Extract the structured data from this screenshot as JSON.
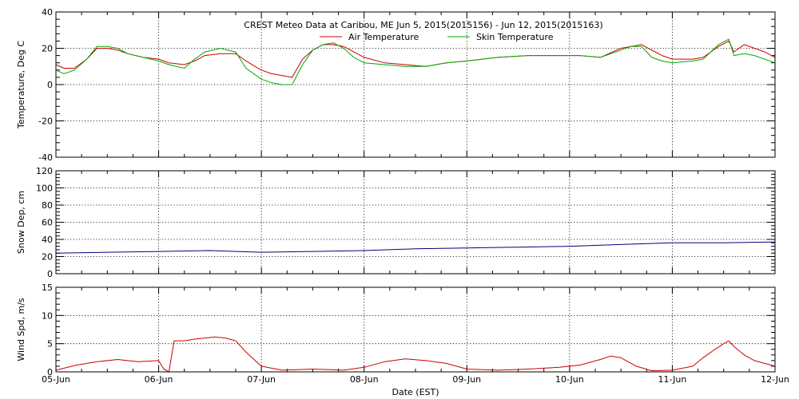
{
  "chart_data": {
    "type": "line",
    "title": "CREST Meteo Data at Caribou, ME   Jun  5, 2015(2015156) - Jun 12, 2015(2015163)",
    "xlabel": "Date (EST)",
    "x_categories": [
      "05-Jun",
      "06-Jun",
      "07-Jun",
      "08-Jun",
      "09-Jun",
      "10-Jun",
      "11-Jun",
      "12-Jun"
    ],
    "xlim_days": [
      0,
      7
    ],
    "grid": true,
    "legend_position": "top-center",
    "panels": [
      {
        "ylabel": "Temperature, Deg C",
        "ylim": [
          -40,
          40
        ],
        "yticks": [
          -40,
          -20,
          0,
          20,
          40
        ],
        "series": [
          {
            "name": "Air Temperature",
            "color": "#cc0000",
            "x": [
              0,
              0.08,
              0.18,
              0.3,
              0.4,
              0.5,
              0.6,
              0.7,
              0.85,
              1.0,
              1.1,
              1.25,
              1.35,
              1.45,
              1.6,
              1.75,
              1.85,
              2.0,
              2.1,
              2.2,
              2.3,
              2.4,
              2.5,
              2.6,
              2.7,
              2.8,
              2.9,
              3.0,
              3.2,
              3.4,
              3.6,
              3.8,
              4.0,
              4.3,
              4.6,
              4.9,
              5.1,
              5.3,
              5.5,
              5.6,
              5.7,
              5.8,
              5.9,
              6.0,
              6.2,
              6.3,
              6.45,
              6.55,
              6.6,
              6.7,
              6.8,
              6.9,
              7.0
            ],
            "y": [
              11,
              9,
              9,
              14,
              20,
              20,
              19,
              17,
              15,
              14,
              12,
              11,
              13,
              16,
              17,
              17,
              13,
              8,
              6,
              5,
              4,
              14,
              19,
              22,
              22,
              21,
              18,
              15,
              12,
              11,
              10,
              12,
              13,
              15,
              16,
              16,
              16,
              15,
              20,
              21,
              22,
              19,
              16,
              14,
              14,
              15,
              21,
              24,
              18,
              22,
              20,
              18,
              15
            ]
          },
          {
            "name": "Skin Temperature",
            "color": "#00aa00",
            "x": [
              0,
              0.08,
              0.18,
              0.3,
              0.4,
              0.5,
              0.6,
              0.7,
              0.85,
              1.0,
              1.1,
              1.25,
              1.35,
              1.45,
              1.6,
              1.75,
              1.85,
              2.0,
              2.1,
              2.2,
              2.3,
              2.4,
              2.5,
              2.6,
              2.7,
              2.8,
              2.9,
              3.0,
              3.2,
              3.4,
              3.6,
              3.8,
              4.0,
              4.3,
              4.6,
              4.9,
              5.1,
              5.3,
              5.5,
              5.6,
              5.7,
              5.8,
              5.9,
              6.0,
              6.2,
              6.3,
              6.45,
              6.55,
              6.6,
              6.7,
              6.8,
              6.9,
              7.0
            ],
            "y": [
              8,
              6,
              8,
              14,
              21,
              21,
              20,
              17,
              15,
              13,
              11,
              9,
              14,
              18,
              20,
              18,
              9,
              3,
              1,
              0,
              0,
              11,
              19,
              22,
              23,
              20,
              15,
              12,
              11,
              10,
              10,
              12,
              13,
              15,
              16,
              16,
              16,
              15,
              19,
              21,
              21,
              15,
              13,
              12,
              13,
              14,
              22,
              25,
              16,
              17,
              16,
              14,
              12
            ]
          }
        ]
      },
      {
        "ylabel": "Snow Dep, cm",
        "ylim": [
          0,
          120
        ],
        "yticks": [
          0,
          20,
          40,
          60,
          80,
          100,
          120
        ],
        "series": [
          {
            "color": "#000080",
            "x": [
              0,
              0.5,
              1.0,
              1.5,
              2.0,
              2.5,
              3.0,
              3.5,
              4.0,
              4.5,
              5.0,
              5.5,
              6.0,
              6.5,
              7.0
            ],
            "y": [
              24,
              25,
              26,
              27,
              25,
              26,
              27,
              29,
              30,
              31,
              32,
              34,
              36,
              36,
              37
            ]
          }
        ]
      },
      {
        "ylabel": "Wind Spd, m/s",
        "ylim": [
          0,
          15
        ],
        "yticks": [
          0,
          5,
          10,
          15
        ],
        "series": [
          {
            "color": "#cc0000",
            "x": [
              0,
              0.2,
              0.4,
              0.6,
              0.8,
              1.0,
              1.05,
              1.1,
              1.15,
              1.25,
              1.35,
              1.45,
              1.55,
              1.65,
              1.75,
              1.85,
              2.0,
              2.2,
              2.5,
              2.8,
              3.0,
              3.2,
              3.4,
              3.6,
              3.8,
              4.0,
              4.3,
              4.6,
              4.9,
              5.1,
              5.3,
              5.4,
              5.5,
              5.65,
              5.8,
              6.0,
              6.2,
              6.3,
              6.4,
              6.5,
              6.55,
              6.6,
              6.7,
              6.8,
              6.9,
              7.0
            ],
            "y": [
              0.3,
              1.2,
              1.8,
              2.2,
              1.8,
              2.0,
              0.5,
              0.0,
              5.5,
              5.5,
              5.8,
              6.0,
              6.2,
              6.0,
              5.5,
              3.5,
              1.0,
              0.3,
              0.5,
              0.3,
              0.8,
              1.8,
              2.3,
              2.0,
              1.5,
              0.5,
              0.3,
              0.5,
              0.8,
              1.2,
              2.2,
              2.8,
              2.5,
              1.0,
              0.2,
              0.3,
              1.0,
              2.5,
              3.8,
              5.0,
              5.5,
              4.5,
              3.0,
              2.0,
              1.5,
              1.0
            ]
          }
        ]
      }
    ]
  }
}
